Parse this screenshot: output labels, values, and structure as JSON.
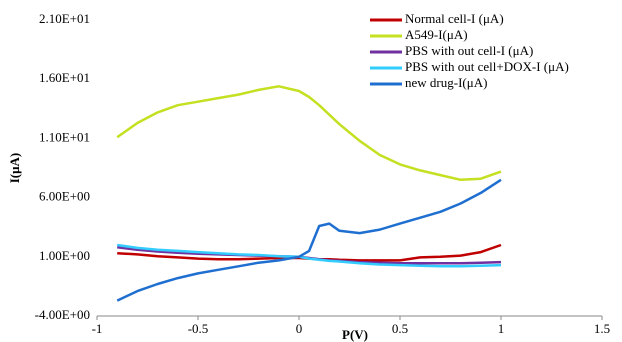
{
  "chart_data": {
    "type": "line",
    "x_label": "P(V)",
    "y_label": "I(μA)",
    "x": [
      -0.9,
      -0.8,
      -0.7,
      -0.6,
      -0.5,
      -0.4,
      -0.3,
      -0.2,
      -0.1,
      0,
      0.05,
      0.1,
      0.15,
      0.2,
      0.3,
      0.4,
      0.5,
      0.6,
      0.7,
      0.8,
      0.9,
      1.0
    ],
    "series": [
      {
        "name": "Normal cell-I (μA)",
        "color": "#c00000",
        "values": [
          1.3,
          1.2,
          1.05,
          0.95,
          0.85,
          0.8,
          0.8,
          0.85,
          0.9,
          0.9,
          0.85,
          0.8,
          0.8,
          0.75,
          0.7,
          0.7,
          0.7,
          0.95,
          1.0,
          1.1,
          1.4,
          2.0
        ]
      },
      {
        "name": "A549-I(μA)",
        "color": "#c4e021",
        "values": [
          11.1,
          12.3,
          13.2,
          13.8,
          14.1,
          14.4,
          14.7,
          15.1,
          15.4,
          15.0,
          14.5,
          13.8,
          13.0,
          12.2,
          10.8,
          9.6,
          8.8,
          8.3,
          7.9,
          7.5,
          7.6,
          8.2
        ]
      },
      {
        "name": "PBS with out cell-I (μA)",
        "color": "#7030a0",
        "values": [
          1.8,
          1.6,
          1.45,
          1.35,
          1.25,
          1.2,
          1.15,
          1.1,
          1.05,
          1.0,
          0.9,
          0.8,
          0.7,
          0.65,
          0.55,
          0.5,
          0.45,
          0.45,
          0.45,
          0.45,
          0.5,
          0.55
        ]
      },
      {
        "name": "PBS with out cell+DOX-I (μA)",
        "color": "#33ccff",
        "values": [
          2.0,
          1.75,
          1.6,
          1.5,
          1.4,
          1.3,
          1.2,
          1.15,
          1.05,
          1.0,
          0.85,
          0.75,
          0.65,
          0.6,
          0.45,
          0.35,
          0.3,
          0.25,
          0.2,
          0.2,
          0.25,
          0.3
        ]
      },
      {
        "name": "new drug-I(μA)",
        "color": "#1f6fd0",
        "values": [
          -2.7,
          -1.9,
          -1.3,
          -0.8,
          -0.4,
          -0.1,
          0.2,
          0.5,
          0.7,
          1.0,
          1.5,
          3.6,
          3.8,
          3.2,
          3.0,
          3.3,
          3.8,
          4.3,
          4.8,
          5.5,
          6.4,
          7.5
        ]
      }
    ],
    "xlim": [
      -1,
      1.5
    ],
    "xticks": [
      -1,
      -0.5,
      0,
      0.5,
      1,
      1.5
    ],
    "ylim": [
      -4,
      21
    ],
    "yticks": [
      {
        "value": -4,
        "label": "-4.00E+00"
      },
      {
        "value": 1,
        "label": "1.00E+00"
      },
      {
        "value": 6,
        "label": "6.00E+00"
      },
      {
        "value": 11,
        "label": "1.10E+01"
      },
      {
        "value": 16,
        "label": "1.60E+01"
      },
      {
        "value": 21,
        "label": "2.10E+01"
      }
    ],
    "legend": "top-right",
    "grid": false
  }
}
